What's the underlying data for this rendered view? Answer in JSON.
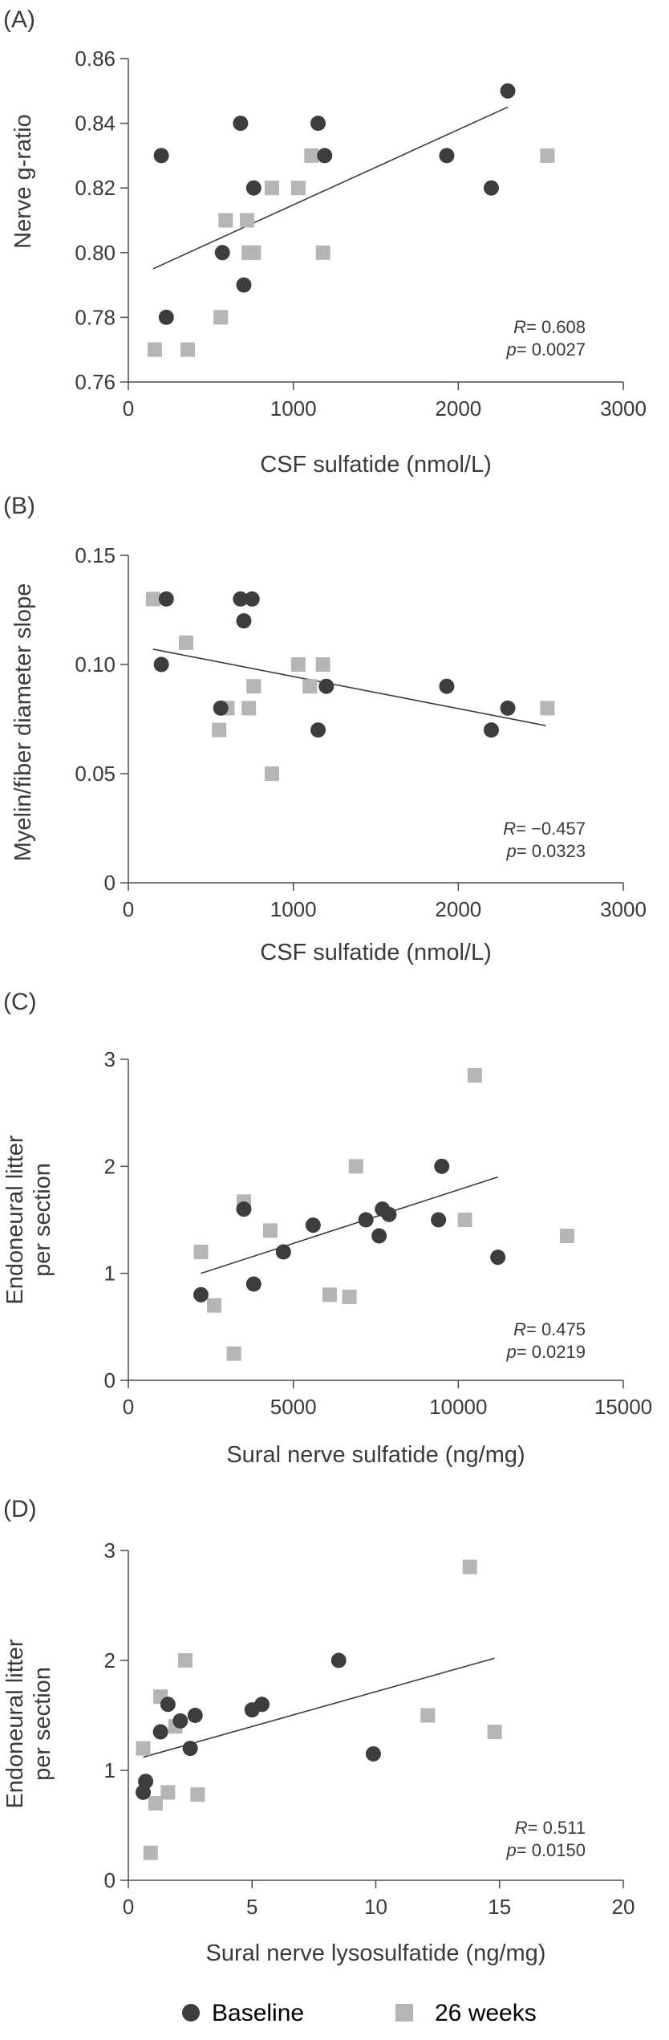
{
  "colors": {
    "baseline": "#3d3d3d",
    "weeks26": "#b5b5b5",
    "axis": "#4a4a4a",
    "text": "#3a3a3a"
  },
  "legend": {
    "baseline_label": "Baseline",
    "weeks26_label": "26 weeks"
  },
  "chart_data": [
    {
      "type": "scatter",
      "panel_label": "(A)",
      "xlabel": "CSF sulfatide (nmol/L)",
      "ylabel": "Nerve g-ratio",
      "xlim": [
        0,
        3000
      ],
      "ylim": [
        0.76,
        0.86
      ],
      "xticks": [
        0,
        1000,
        2000,
        3000
      ],
      "yticks": [
        "0.76",
        "0.78",
        "0.80",
        "0.82",
        "0.84",
        "0.86"
      ],
      "stats": {
        "r_label": "R",
        "r_value": "= 0.608",
        "p_label": "p",
        "p_value": "= 0.0027"
      },
      "regression": {
        "x": [
          150,
          2300
        ],
        "y": [
          0.795,
          0.845
        ]
      },
      "series": [
        {
          "name": "Baseline",
          "marker": "circle",
          "x": [
            200,
            230,
            570,
            680,
            700,
            760,
            1150,
            1190,
            1930,
            2200,
            2300
          ],
          "y": [
            0.83,
            0.78,
            0.8,
            0.84,
            0.79,
            0.82,
            0.84,
            0.83,
            0.83,
            0.82,
            0.85
          ]
        },
        {
          "name": "26 weeks",
          "marker": "square",
          "x": [
            160,
            360,
            560,
            590,
            720,
            730,
            760,
            870,
            1030,
            1110,
            1180,
            2540
          ],
          "y": [
            0.77,
            0.77,
            0.78,
            0.81,
            0.81,
            0.8,
            0.8,
            0.82,
            0.82,
            0.83,
            0.8,
            0.83
          ]
        }
      ]
    },
    {
      "type": "scatter",
      "panel_label": "(B)",
      "xlabel": "CSF sulfatide (nmol/L)",
      "ylabel": "Myelin/fiber diameter slope",
      "xlim": [
        0,
        3000
      ],
      "ylim": [
        0,
        0.15
      ],
      "xticks": [
        0,
        1000,
        2000,
        3000
      ],
      "yticks": [
        "0",
        "0.05",
        "0.10",
        "0.15"
      ],
      "stats": {
        "r_label": "R",
        "r_value": "= −0.457",
        "p_label": "p",
        "p_value": "= 0.0323"
      },
      "regression": {
        "x": [
          150,
          2530
        ],
        "y": [
          0.107,
          0.072
        ]
      },
      "series": [
        {
          "name": "Baseline",
          "marker": "circle",
          "x": [
            200,
            230,
            560,
            680,
            700,
            750,
            1150,
            1200,
            1930,
            2200,
            2300
          ],
          "y": [
            0.1,
            0.13,
            0.08,
            0.13,
            0.12,
            0.13,
            0.07,
            0.09,
            0.09,
            0.07,
            0.08
          ]
        },
        {
          "name": "26 weeks",
          "marker": "square",
          "x": [
            150,
            350,
            550,
            600,
            730,
            760,
            870,
            1030,
            1100,
            1180,
            2540
          ],
          "y": [
            0.13,
            0.11,
            0.07,
            0.08,
            0.08,
            0.09,
            0.05,
            0.1,
            0.09,
            0.1,
            0.08
          ]
        }
      ]
    },
    {
      "type": "scatter",
      "panel_label": "(C)",
      "xlabel": "Sural nerve sulfatide (ng/mg)",
      "ylabel": [
        "Endoneural litter",
        "per section"
      ],
      "xlim": [
        0,
        15000
      ],
      "ylim": [
        0,
        3
      ],
      "xticks": [
        0,
        5000,
        10000,
        15000
      ],
      "yticks": [
        "0",
        "1",
        "2",
        "3"
      ],
      "stats": {
        "r_label": "R",
        "r_value": "= 0.475",
        "p_label": "p",
        "p_value": "= 0.0219"
      },
      "regression": {
        "x": [
          2200,
          11200
        ],
        "y": [
          1.0,
          1.9
        ]
      },
      "series": [
        {
          "name": "Baseline",
          "marker": "circle",
          "x": [
            2200,
            3500,
            3800,
            4700,
            5600,
            7200,
            7600,
            7700,
            7900,
            9400,
            9500,
            11200
          ],
          "y": [
            0.8,
            1.6,
            0.9,
            1.2,
            1.45,
            1.5,
            1.35,
            1.6,
            1.55,
            1.5,
            2.0,
            1.15
          ]
        },
        {
          "name": "26 weeks",
          "marker": "square",
          "x": [
            2200,
            2600,
            3200,
            3500,
            4300,
            6100,
            6700,
            6900,
            10200,
            10500,
            13300
          ],
          "y": [
            1.2,
            0.7,
            0.25,
            1.67,
            1.4,
            0.8,
            0.78,
            2.0,
            1.5,
            2.85,
            1.35
          ]
        }
      ]
    },
    {
      "type": "scatter",
      "panel_label": "(D)",
      "xlabel": "Sural nerve lysosulfatide (ng/mg)",
      "ylabel": [
        "Endoneural litter",
        "per section"
      ],
      "xlim": [
        0,
        20
      ],
      "ylim": [
        0,
        3
      ],
      "xticks": [
        0,
        5,
        10,
        15,
        20
      ],
      "yticks": [
        "0",
        "1",
        "2",
        "3"
      ],
      "stats": {
        "r_label": "R",
        "r_value": "= 0.511",
        "p_label": "p",
        "p_value": "= 0.0150"
      },
      "regression": {
        "x": [
          0.6,
          14.8
        ],
        "y": [
          1.12,
          2.02
        ]
      },
      "series": [
        {
          "name": "Baseline",
          "marker": "circle",
          "x": [
            0.6,
            0.7,
            1.3,
            1.6,
            2.1,
            2.5,
            2.7,
            5.0,
            5.4,
            8.5,
            9.9
          ],
          "y": [
            0.8,
            0.9,
            1.35,
            1.6,
            1.45,
            1.2,
            1.5,
            1.55,
            1.6,
            2.0,
            1.15
          ]
        },
        {
          "name": "26 weeks",
          "marker": "square",
          "x": [
            0.6,
            0.9,
            1.1,
            1.3,
            1.6,
            1.9,
            2.3,
            2.8,
            12.1,
            13.8,
            14.8
          ],
          "y": [
            1.2,
            0.25,
            0.7,
            1.67,
            0.8,
            1.4,
            2.0,
            0.78,
            1.5,
            2.85,
            1.35
          ]
        }
      ]
    }
  ]
}
